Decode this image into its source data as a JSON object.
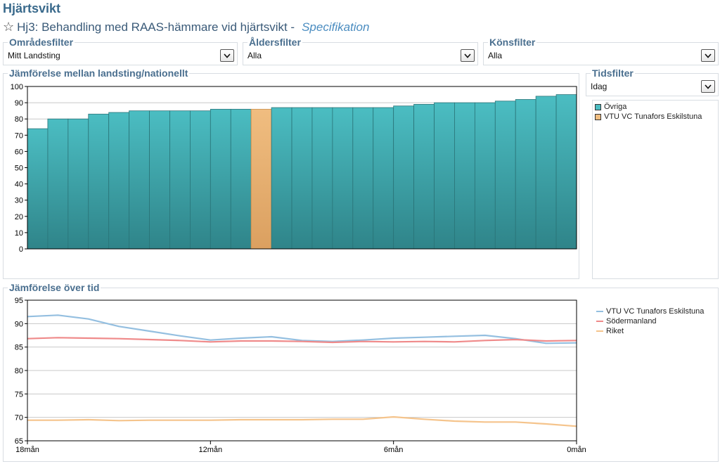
{
  "page": {
    "title": "Hjärtsvikt",
    "subtitle": "Hj3: Behandling med RAAS-hämmare vid hjärtsvikt -",
    "spec_link": "Specifikation"
  },
  "filters": {
    "area": {
      "label": "Områdesfilter",
      "value": "Mitt Landsting"
    },
    "age": {
      "label": "Åldersfilter",
      "value": "Alla"
    },
    "gender": {
      "label": "Könsfilter",
      "value": "Alla"
    },
    "time": {
      "label": "Tidsfilter",
      "value": "Idag"
    }
  },
  "colors": {
    "teal": "#4bbdc2",
    "teal_dark": "#2f8489",
    "orange": "#f0bd80",
    "orange_dark": "#dba060",
    "line_blue": "#94bfe0",
    "line_red": "#ef8a8a",
    "line_orange": "#f5c48c"
  },
  "bar_panel": {
    "title": "Jämförelse mellan landsting/nationellt",
    "legend": [
      {
        "label": "Övriga",
        "color": "#4bbdc2"
      },
      {
        "label": "VTU VC Tunafors Eskilstuna",
        "color": "#f0bd80"
      }
    ]
  },
  "line_panel": {
    "title": "Jämförelse över tid",
    "legend": [
      {
        "label": "VTU VC Tunafors Eskilstuna",
        "color": "#94bfe0"
      },
      {
        "label": "Södermanland",
        "color": "#ef8a8a"
      },
      {
        "label": "Riket",
        "color": "#f5c48c"
      }
    ]
  },
  "chart_data": [
    {
      "type": "bar",
      "values": [
        74,
        80,
        80,
        83,
        84,
        85,
        85,
        85,
        85,
        86,
        86,
        86,
        87,
        87,
        87,
        87,
        87,
        87,
        88,
        89,
        90,
        90,
        90,
        91,
        92,
        94,
        95
      ],
      "highlight_index": 11,
      "ylim": [
        0,
        100
      ],
      "yticks": [
        0,
        10,
        20,
        30,
        40,
        50,
        60,
        70,
        80,
        90,
        100
      ],
      "grid": true,
      "legend_position": "right"
    },
    {
      "type": "line",
      "x": [
        18,
        17,
        16,
        15,
        14,
        13,
        12,
        11,
        10,
        9,
        8,
        7,
        6,
        5,
        4,
        3,
        2,
        1,
        0
      ],
      "x_unit": "mån",
      "xticks": [
        "18mån",
        "12mån",
        "6mån",
        "0mån"
      ],
      "xtick_values": [
        18,
        12,
        6,
        0
      ],
      "ylim": [
        65,
        95
      ],
      "yticks": [
        65,
        70,
        75,
        80,
        85,
        90,
        95
      ],
      "grid": true,
      "legend_position": "right",
      "series": [
        {
          "name": "VTU VC Tunafors Eskilstuna",
          "values": [
            91.5,
            91.8,
            91.0,
            89.4,
            88.4,
            87.4,
            86.5,
            86.9,
            87.2,
            86.4,
            86.2,
            86.5,
            86.9,
            87.1,
            87.3,
            87.5,
            86.8,
            85.8,
            85.9
          ]
        },
        {
          "name": "Södermanland",
          "values": [
            86.8,
            87.0,
            86.9,
            86.8,
            86.6,
            86.4,
            86.1,
            86.3,
            86.3,
            86.2,
            86.0,
            86.2,
            86.1,
            86.2,
            86.1,
            86.4,
            86.6,
            86.3,
            86.4
          ]
        },
        {
          "name": "Riket",
          "values": [
            69.4,
            69.4,
            69.5,
            69.3,
            69.4,
            69.4,
            69.4,
            69.5,
            69.5,
            69.5,
            69.6,
            69.6,
            70.1,
            69.6,
            69.2,
            69.0,
            69.0,
            68.6,
            68.1
          ]
        }
      ]
    }
  ]
}
